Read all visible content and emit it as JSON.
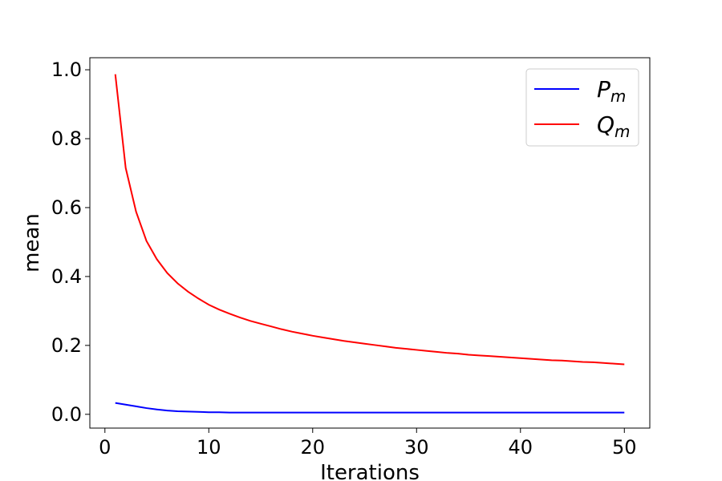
{
  "chart_data": {
    "type": "line",
    "xlabel": "Iterations",
    "ylabel": "mean",
    "xlim": [
      -1.45,
      52.45
    ],
    "ylim": [
      -0.04,
      1.035
    ],
    "xticks": [
      0,
      10,
      20,
      30,
      40,
      50
    ],
    "xtick_labels": [
      "0",
      "10",
      "20",
      "30",
      "40",
      "50"
    ],
    "yticks": [
      0.0,
      0.2,
      0.4,
      0.6,
      0.8,
      1.0
    ],
    "ytick_labels": [
      "0.0",
      "0.2",
      "0.4",
      "0.6",
      "0.8",
      "1.0"
    ],
    "grid": false,
    "legend_position": "top-right",
    "x": [
      1,
      2,
      3,
      4,
      5,
      6,
      7,
      8,
      9,
      10,
      11,
      12,
      13,
      14,
      15,
      16,
      17,
      18,
      19,
      20,
      21,
      22,
      23,
      24,
      25,
      26,
      27,
      28,
      29,
      30,
      31,
      32,
      33,
      34,
      35,
      36,
      37,
      38,
      39,
      40,
      41,
      42,
      43,
      44,
      45,
      46,
      47,
      48,
      49,
      50
    ],
    "series": [
      {
        "name": "P_m",
        "label_main": "P",
        "label_sub": "m",
        "color": "#0000ff",
        "values": [
          0.033,
          0.028,
          0.023,
          0.018,
          0.014,
          0.011,
          0.009,
          0.008,
          0.007,
          0.006,
          0.006,
          0.005,
          0.005,
          0.005,
          0.005,
          0.005,
          0.005,
          0.005,
          0.005,
          0.005,
          0.005,
          0.005,
          0.005,
          0.005,
          0.005,
          0.005,
          0.005,
          0.005,
          0.005,
          0.005,
          0.005,
          0.005,
          0.005,
          0.005,
          0.005,
          0.005,
          0.005,
          0.005,
          0.005,
          0.005,
          0.005,
          0.005,
          0.005,
          0.005,
          0.005,
          0.005,
          0.005,
          0.005,
          0.005,
          0.005
        ]
      },
      {
        "name": "Q_m",
        "label_main": "Q",
        "label_sub": "m",
        "color": "#ff0000",
        "values": [
          0.987,
          0.715,
          0.588,
          0.503,
          0.45,
          0.41,
          0.38,
          0.356,
          0.336,
          0.318,
          0.304,
          0.292,
          0.281,
          0.271,
          0.263,
          0.255,
          0.247,
          0.24,
          0.234,
          0.228,
          0.223,
          0.218,
          0.213,
          0.209,
          0.205,
          0.201,
          0.197,
          0.193,
          0.19,
          0.187,
          0.184,
          0.181,
          0.178,
          0.176,
          0.173,
          0.171,
          0.169,
          0.167,
          0.165,
          0.163,
          0.161,
          0.159,
          0.157,
          0.156,
          0.154,
          0.152,
          0.151,
          0.149,
          0.147,
          0.145
        ]
      }
    ]
  }
}
